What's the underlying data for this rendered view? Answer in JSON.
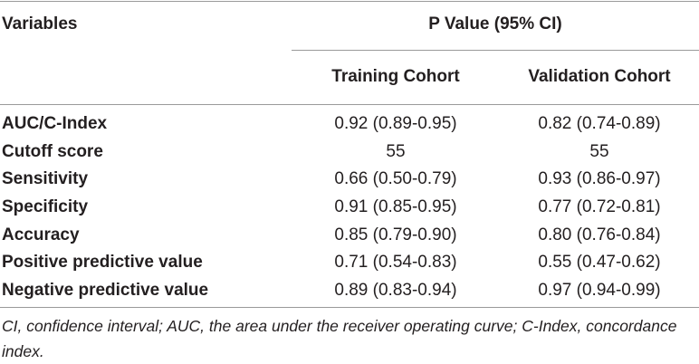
{
  "header": {
    "variables": "Variables",
    "p_value": "P Value (95% CI)",
    "training": "Training Cohort",
    "validation": "Validation Cohort"
  },
  "rows": [
    {
      "label": "AUC/C-Index",
      "training": "0.92 (0.89-0.95)",
      "validation": "0.82 (0.74-0.89)"
    },
    {
      "label": "Cutoff score",
      "training": "55",
      "validation": "55"
    },
    {
      "label": "Sensitivity",
      "training": "0.66 (0.50-0.79)",
      "validation": "0.93 (0.86-0.97)"
    },
    {
      "label": "Specificity",
      "training": "0.91 (0.85-0.95)",
      "validation": "0.77 (0.72-0.81)"
    },
    {
      "label": "Accuracy",
      "training": "0.85 (0.79-0.90)",
      "validation": "0.80 (0.76-0.84)"
    },
    {
      "label": "Positive predictive value",
      "training": "0.71 (0.54-0.83)",
      "validation": "0.55 (0.47-0.62)"
    },
    {
      "label": "Negative predictive value",
      "training": "0.89 (0.83-0.94)",
      "validation": "0.97 (0.94-0.99)"
    }
  ],
  "footnote": "CI, confidence interval; AUC, the area under the receiver operating curve; C-Index, concordance index."
}
